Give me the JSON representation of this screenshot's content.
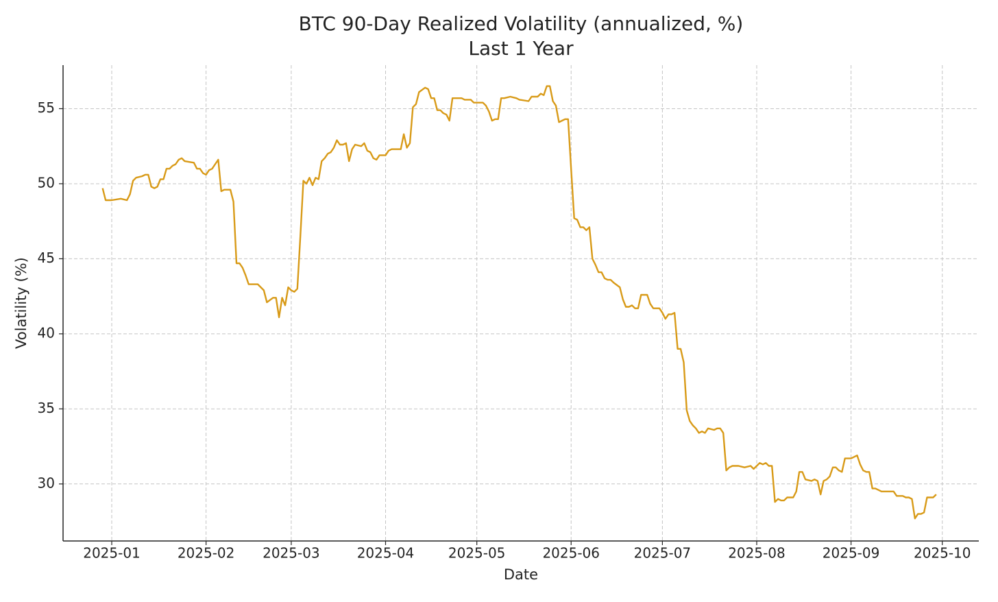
{
  "chart_data": {
    "type": "line",
    "title": "BTC 90-Day Realized Volatility (annualized, %)",
    "subtitle": "Last 1 Year",
    "x_label": "Date",
    "y_label": "Volatility (%)",
    "x": [
      "2024-12-29",
      "2024-12-30",
      "2025-01-01",
      "2025-01-04",
      "2025-01-06",
      "2025-01-07",
      "2025-01-08",
      "2025-01-09",
      "2025-01-11",
      "2025-01-12",
      "2025-01-13",
      "2025-01-14",
      "2025-01-15",
      "2025-01-16",
      "2025-01-17",
      "2025-01-18",
      "2025-01-19",
      "2025-01-20",
      "2025-01-21",
      "2025-01-22",
      "2025-01-23",
      "2025-01-24",
      "2025-01-25",
      "2025-01-28",
      "2025-01-29",
      "2025-01-30",
      "2025-01-31",
      "2025-02-01",
      "2025-02-02",
      "2025-02-03",
      "2025-02-04",
      "2025-02-05",
      "2025-02-06",
      "2025-02-07",
      "2025-02-09",
      "2025-02-10",
      "2025-02-11",
      "2025-02-12",
      "2025-02-13",
      "2025-02-14",
      "2025-02-15",
      "2025-02-18",
      "2025-02-19",
      "2025-02-20",
      "2025-02-21",
      "2025-02-23",
      "2025-02-24",
      "2025-02-25",
      "2025-02-26",
      "2025-02-27",
      "2025-02-28",
      "2025-03-01",
      "2025-03-02",
      "2025-03-03",
      "2025-03-04",
      "2025-03-05",
      "2025-03-06",
      "2025-03-07",
      "2025-03-08",
      "2025-03-09",
      "2025-03-10",
      "2025-03-11",
      "2025-03-12",
      "2025-03-13",
      "2025-03-14",
      "2025-03-15",
      "2025-03-16",
      "2025-03-17",
      "2025-03-18",
      "2025-03-19",
      "2025-03-20",
      "2025-03-21",
      "2025-03-22",
      "2025-03-24",
      "2025-03-25",
      "2025-03-26",
      "2025-03-27",
      "2025-03-28",
      "2025-03-29",
      "2025-03-30",
      "2025-04-01",
      "2025-04-02",
      "2025-04-03",
      "2025-04-06",
      "2025-04-07",
      "2025-04-08",
      "2025-04-09",
      "2025-04-10",
      "2025-04-11",
      "2025-04-12",
      "2025-04-14",
      "2025-04-15",
      "2025-04-16",
      "2025-04-17",
      "2025-04-18",
      "2025-04-19",
      "2025-04-20",
      "2025-04-21",
      "2025-04-22",
      "2025-04-23",
      "2025-04-25",
      "2025-04-26",
      "2025-04-27",
      "2025-04-29",
      "2025-04-30",
      "2025-05-02",
      "2025-05-03",
      "2025-05-04",
      "2025-05-05",
      "2025-05-06",
      "2025-05-07",
      "2025-05-08",
      "2025-05-09",
      "2025-05-10",
      "2025-05-12",
      "2025-05-14",
      "2025-05-15",
      "2025-05-18",
      "2025-05-19",
      "2025-05-21",
      "2025-05-22",
      "2025-05-23",
      "2025-05-24",
      "2025-05-25",
      "2025-05-26",
      "2025-05-27",
      "2025-05-28",
      "2025-05-29",
      "2025-05-30",
      "2025-05-31",
      "2025-06-01",
      "2025-06-02",
      "2025-06-03",
      "2025-06-04",
      "2025-06-05",
      "2025-06-06",
      "2025-06-07",
      "2025-06-08",
      "2025-06-09",
      "2025-06-10",
      "2025-06-11",
      "2025-06-12",
      "2025-06-13",
      "2025-06-14",
      "2025-06-15",
      "2025-06-17",
      "2025-06-18",
      "2025-06-19",
      "2025-06-20",
      "2025-06-21",
      "2025-06-22",
      "2025-06-23",
      "2025-06-24",
      "2025-06-26",
      "2025-06-27",
      "2025-06-28",
      "2025-06-30",
      "2025-07-01",
      "2025-07-02",
      "2025-07-03",
      "2025-07-04",
      "2025-07-05",
      "2025-07-06",
      "2025-07-07",
      "2025-07-08",
      "2025-07-09",
      "2025-07-10",
      "2025-07-11",
      "2025-07-12",
      "2025-07-13",
      "2025-07-14",
      "2025-07-15",
      "2025-07-16",
      "2025-07-18",
      "2025-07-19",
      "2025-07-20",
      "2025-07-21",
      "2025-07-22",
      "2025-07-23",
      "2025-07-24",
      "2025-07-26",
      "2025-07-28",
      "2025-07-30",
      "2025-07-31",
      "2025-08-01",
      "2025-08-02",
      "2025-08-03",
      "2025-08-04",
      "2025-08-05",
      "2025-08-06",
      "2025-08-07",
      "2025-08-08",
      "2025-08-09",
      "2025-08-10",
      "2025-08-11",
      "2025-08-13",
      "2025-08-14",
      "2025-08-15",
      "2025-08-16",
      "2025-08-17",
      "2025-08-19",
      "2025-08-20",
      "2025-08-21",
      "2025-08-22",
      "2025-08-23",
      "2025-08-24",
      "2025-08-25",
      "2025-08-26",
      "2025-08-27",
      "2025-08-28",
      "2025-08-29",
      "2025-08-30",
      "2025-09-01",
      "2025-09-02",
      "2025-09-03",
      "2025-09-04",
      "2025-09-05",
      "2025-09-06",
      "2025-09-07",
      "2025-09-08",
      "2025-09-09",
      "2025-09-10",
      "2025-09-11",
      "2025-09-12",
      "2025-09-15",
      "2025-09-16",
      "2025-09-18",
      "2025-09-19",
      "2025-09-20",
      "2025-09-21",
      "2025-09-22",
      "2025-09-23",
      "2025-09-24",
      "2025-09-25",
      "2025-09-26",
      "2025-09-27",
      "2025-09-28",
      "2025-09-29"
    ],
    "series": [
      {
        "name": "90-Day Realized Volatility",
        "color": "#d89a17",
        "values": [
          49.7,
          48.9,
          48.9,
          49.0,
          48.9,
          49.3,
          50.2,
          50.4,
          50.5,
          50.6,
          50.6,
          49.8,
          49.7,
          49.8,
          50.3,
          50.3,
          51.0,
          51.0,
          51.2,
          51.3,
          51.6,
          51.7,
          51.5,
          51.4,
          51.0,
          51.0,
          50.7,
          50.6,
          50.9,
          51.0,
          51.3,
          51.6,
          49.5,
          49.6,
          49.6,
          48.8,
          44.7,
          44.7,
          44.4,
          43.9,
          43.3,
          43.3,
          43.1,
          42.9,
          42.1,
          42.4,
          42.4,
          41.1,
          42.4,
          41.9,
          43.1,
          42.9,
          42.8,
          43.0,
          46.5,
          50.2,
          50.0,
          50.4,
          49.9,
          50.4,
          50.3,
          51.5,
          51.7,
          52.0,
          52.1,
          52.4,
          52.9,
          52.6,
          52.6,
          52.7,
          51.5,
          52.3,
          52.6,
          52.5,
          52.7,
          52.2,
          52.1,
          51.7,
          51.6,
          51.9,
          51.9,
          52.2,
          52.3,
          52.3,
          53.3,
          52.4,
          52.7,
          55.1,
          55.3,
          56.1,
          56.4,
          56.3,
          55.7,
          55.7,
          54.9,
          54.9,
          54.7,
          54.6,
          54.2,
          55.7,
          55.7,
          55.7,
          55.6,
          55.6,
          55.4,
          55.4,
          55.4,
          55.2,
          54.8,
          54.2,
          54.3,
          54.3,
          55.7,
          55.7,
          55.8,
          55.7,
          55.6,
          55.5,
          55.8,
          55.8,
          56.0,
          55.9,
          56.5,
          56.5,
          55.5,
          55.2,
          54.1,
          54.2,
          54.3,
          54.3,
          51.0,
          47.7,
          47.6,
          47.1,
          47.1,
          46.9,
          47.1,
          45.0,
          44.6,
          44.1,
          44.1,
          43.7,
          43.6,
          43.6,
          43.4,
          43.1,
          42.3,
          41.8,
          41.8,
          41.9,
          41.7,
          41.7,
          42.6,
          42.6,
          42.0,
          41.7,
          41.7,
          41.4,
          41.0,
          41.3,
          41.3,
          41.4,
          39.0,
          39.0,
          38.1,
          34.9,
          34.2,
          33.9,
          33.7,
          33.4,
          33.5,
          33.4,
          33.7,
          33.6,
          33.7,
          33.7,
          33.4,
          30.9,
          31.1,
          31.2,
          31.2,
          31.1,
          31.2,
          31.0,
          31.2,
          31.4,
          31.3,
          31.4,
          31.2,
          31.2,
          28.8,
          29.0,
          28.9,
          28.9,
          29.1,
          29.1,
          29.5,
          30.8,
          30.8,
          30.3,
          30.2,
          30.3,
          30.2,
          29.3,
          30.2,
          30.3,
          30.5,
          31.1,
          31.1,
          30.9,
          30.8,
          31.7,
          31.7,
          31.8,
          31.9,
          31.3,
          30.9,
          30.8,
          30.8,
          29.7,
          29.7,
          29.6,
          29.5,
          29.5,
          29.5,
          29.2,
          29.2,
          29.1,
          29.1,
          29.0,
          27.7,
          28.0,
          28.0,
          28.1,
          29.1,
          29.1,
          29.1,
          29.3
        ]
      }
    ],
    "xlim": [
      "2024-12-16",
      "2025-10-13"
    ],
    "xticks": [
      {
        "value": "2025-01-01",
        "label": "2025-01"
      },
      {
        "value": "2025-02-01",
        "label": "2025-02"
      },
      {
        "value": "2025-03-01",
        "label": "2025-03"
      },
      {
        "value": "2025-04-01",
        "label": "2025-04"
      },
      {
        "value": "2025-05-01",
        "label": "2025-05"
      },
      {
        "value": "2025-06-01",
        "label": "2025-06"
      },
      {
        "value": "2025-07-01",
        "label": "2025-07"
      },
      {
        "value": "2025-08-01",
        "label": "2025-08"
      },
      {
        "value": "2025-09-01",
        "label": "2025-09"
      },
      {
        "value": "2025-10-01",
        "label": "2025-10"
      }
    ],
    "ylim": [
      26.2,
      57.9
    ],
    "yticks": [
      30,
      35,
      40,
      45,
      50,
      55
    ],
    "grid": true
  }
}
